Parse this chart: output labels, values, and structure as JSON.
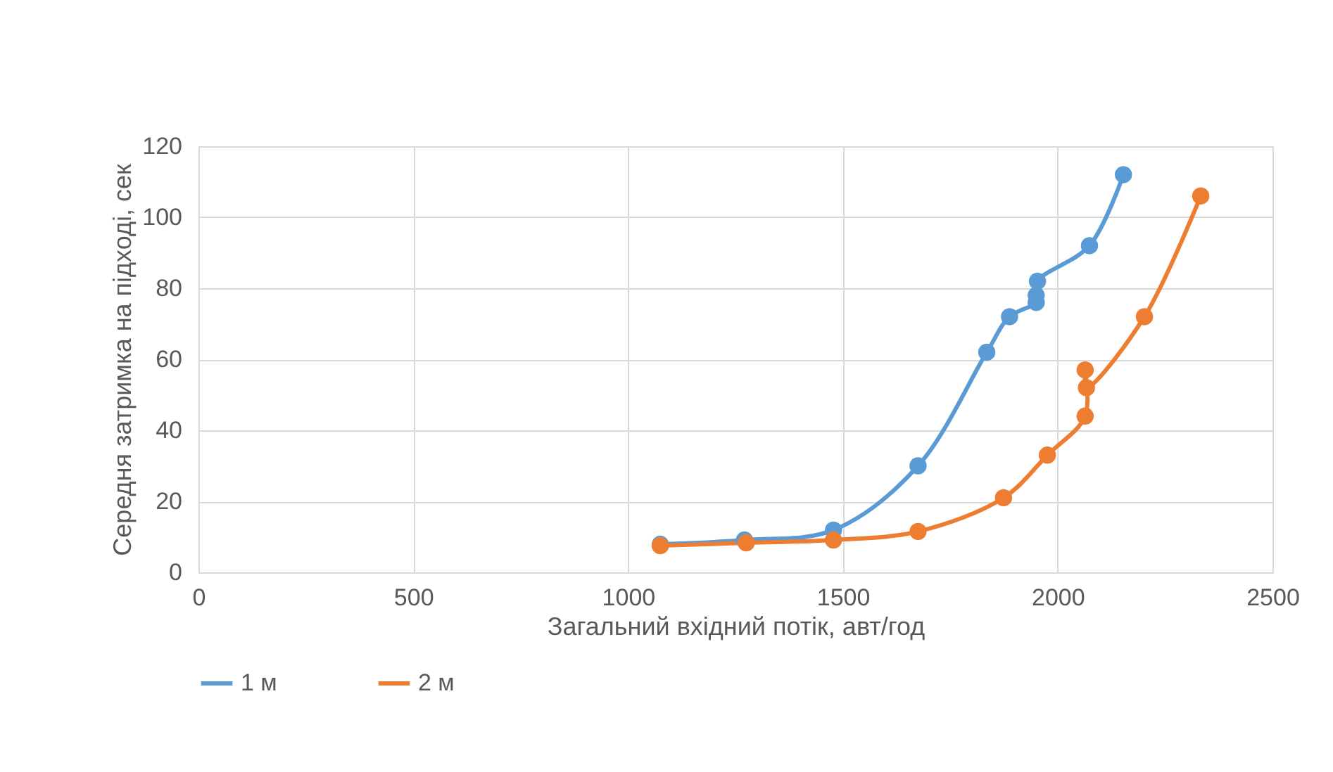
{
  "chart_data": {
    "type": "line",
    "xlabel": "Загальний вхідний потік, авт/год",
    "ylabel": "Середня затримка на підході, сек",
    "xlim": [
      0,
      2500
    ],
    "xticks": [
      0,
      500,
      1000,
      1500,
      2000,
      2500
    ],
    "ylim": [
      0,
      120
    ],
    "yticks": [
      0,
      20,
      40,
      60,
      80,
      100,
      120
    ],
    "grid": true,
    "legend": "bottom",
    "marker": "circle",
    "line_style": "solid",
    "series": [
      {
        "name": "1  м",
        "color": "#5b9bd5",
        "x": [
          1075,
          1271,
          1478,
          1675,
          1835,
          1888,
          1950,
          1950,
          1953,
          2074,
          2153
        ],
        "values": [
          7.9,
          9.1,
          11.9,
          30,
          62,
          72,
          76,
          78,
          82,
          92,
          112
        ]
      },
      {
        "name": "2  м",
        "color": "#ed7d31",
        "x": [
          1075,
          1275,
          1478,
          1675,
          1874,
          1976,
          2064,
          2064,
          2067,
          2202,
          2333
        ],
        "values": [
          7.5,
          8.3,
          9.1,
          11.5,
          21,
          33,
          44,
          57,
          52,
          72,
          106
        ]
      }
    ]
  }
}
